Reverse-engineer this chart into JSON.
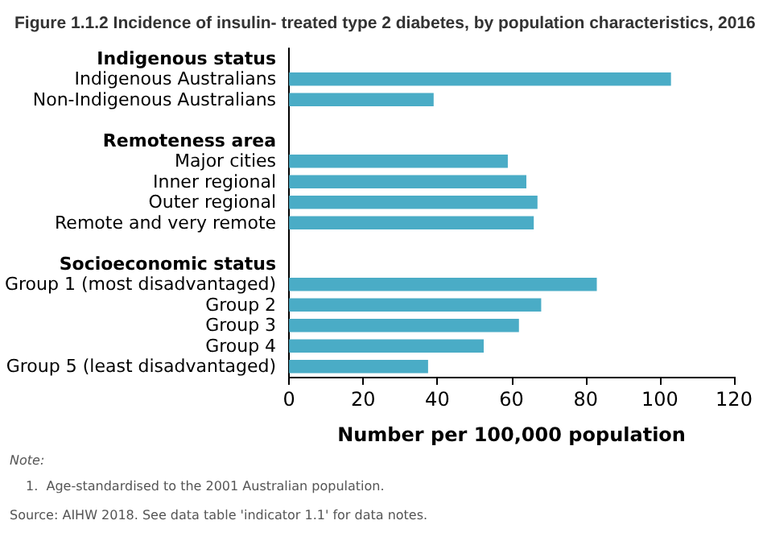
{
  "chart_data": {
    "type": "bar",
    "orientation": "horizontal",
    "title": "Figure 1.1.2 Incidence of insulin- treated type 2 diabetes, by population characteristics, 2016",
    "xlabel": "Number per 100,000 population",
    "categories": [
      "Indigenous status",
      "Indigenous Australians",
      "Non-Indigenous Australians",
      null,
      "Remoteness area",
      "Major cities",
      "Inner regional",
      "Outer regional",
      "Remote and very remote",
      null,
      "Socioeconomic status",
      "Group 1 (most disadvantaged)",
      "Group 2",
      "Group 3",
      "Group 4",
      "Group 5 (least disadvantaged)"
    ],
    "values": [
      null,
      103,
      39,
      null,
      null,
      59,
      64,
      67,
      66,
      null,
      null,
      83,
      68,
      62,
      52.5,
      37.5
    ],
    "color": "#4aacc6",
    "xlim": [
      0,
      120
    ],
    "xticks": [
      0,
      20,
      40,
      60,
      80,
      100,
      120
    ],
    "grid": false,
    "annotations": [
      "Note:",
      "1.  Age-standardised to the 2001 Australian population.",
      "Source: AIHW 2018. See data table 'indicator 1.1' for data notes."
    ]
  }
}
